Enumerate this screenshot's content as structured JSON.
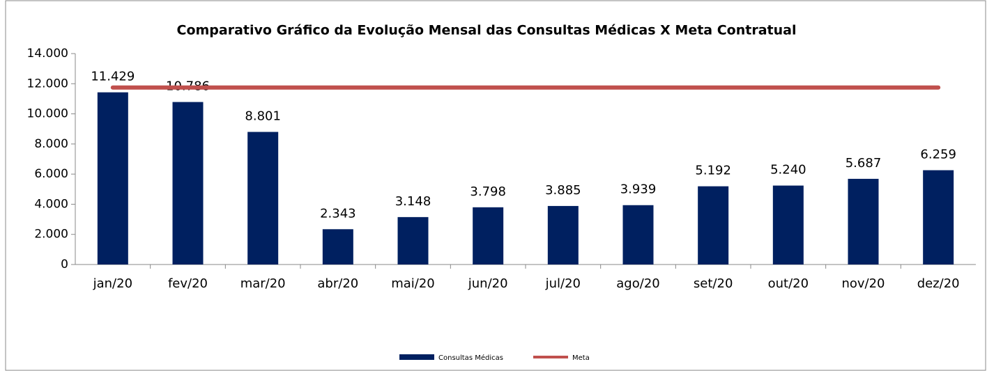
{
  "chart_data": {
    "type": "bar",
    "title": "Comparativo Gráfico da Evolução Mensal das Consultas Médicas X Meta Contratual",
    "categories": [
      "jan/20",
      "fev/20",
      "mar/20",
      "abr/20",
      "mai/20",
      "jun/20",
      "jul/20",
      "ago/20",
      "set/20",
      "out/20",
      "nov/20",
      "dez/20"
    ],
    "series": [
      {
        "name": "Consultas Médicas",
        "type": "bar",
        "color": "#002060",
        "values": [
          11429,
          10786,
          8801,
          2343,
          3148,
          3798,
          3885,
          3939,
          5192,
          5240,
          5687,
          6259
        ],
        "value_labels": [
          "11.429",
          "10.786",
          "8.801",
          "2.343",
          "3.148",
          "3.798",
          "3.885",
          "3.939",
          "5.192",
          "5.240",
          "5.687",
          "6.259"
        ]
      },
      {
        "name": "Meta",
        "type": "line",
        "color": "#c0504d",
        "values": [
          11750,
          11750,
          11750,
          11750,
          11750,
          11750,
          11750,
          11750,
          11750,
          11750,
          11750,
          11750
        ]
      }
    ],
    "ylim": [
      0,
      14000
    ],
    "yticks": [
      0,
      {
        "value": 2000,
        "label": "2.000"
      },
      {
        "value": 4000,
        "label": "4.000"
      },
      {
        "value": 6000,
        "label": "6.000"
      },
      {
        "value": 8000,
        "label": "8.000"
      },
      {
        "value": 10000,
        "label": "10.000"
      },
      {
        "value": 12000,
        "label": "12.000"
      },
      {
        "value": 14000,
        "label": "14.000"
      }
    ],
    "grid": false,
    "legend": "bottom"
  }
}
